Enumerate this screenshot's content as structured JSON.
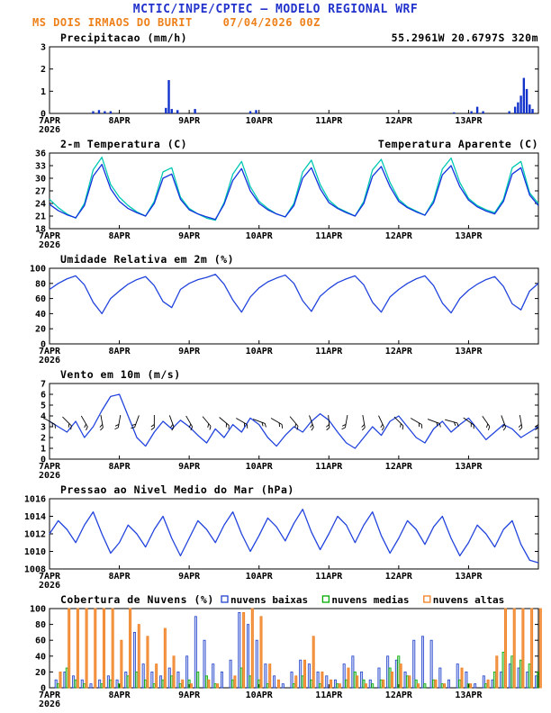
{
  "header": {
    "title": "MCTIC/INPE/CPTEC — MODELO REGIONAL WRF",
    "station": "MS DOIS IRMAOS DO BURIT",
    "run": "07/04/2026 00Z",
    "colors": {
      "title": "#2233cc",
      "subtitle": "#ee8019"
    }
  },
  "x_axis": {
    "labels": [
      "7APR",
      "8APR",
      "9APR",
      "10APR",
      "11APR",
      "12APR",
      "13APR"
    ],
    "year": "2026",
    "hours_max": 168,
    "tick_every_h": 24
  },
  "chart_data": [
    {
      "id": "precip",
      "type": "bar",
      "title": "Precipitacao (mm/h)",
      "right_label": "55.2961W 20.6797S 320m",
      "right_label_color": "#ee8019",
      "ylim": [
        0,
        3
      ],
      "yticks": [
        0,
        1,
        2,
        3
      ],
      "step_hours": 1,
      "series": [
        {
          "name": "precipitation",
          "type": "bar",
          "color": "#1133cc",
          "points": [
            [
              15,
              0.1
            ],
            [
              17,
              0.15
            ],
            [
              19,
              0.1
            ],
            [
              21,
              0.1
            ],
            [
              40,
              0.25
            ],
            [
              41,
              1.5
            ],
            [
              42,
              0.2
            ],
            [
              44,
              0.15
            ],
            [
              50,
              0.2
            ],
            [
              69,
              0.1
            ],
            [
              71,
              0.15
            ],
            [
              139,
              0.05
            ],
            [
              145,
              0.1
            ],
            [
              147,
              0.3
            ],
            [
              149,
              0.1
            ],
            [
              158,
              0.1
            ],
            [
              160,
              0.3
            ],
            [
              161,
              0.5
            ],
            [
              162,
              0.8
            ],
            [
              163,
              1.6
            ],
            [
              164,
              1.1
            ],
            [
              165,
              0.4
            ],
            [
              166,
              0.2
            ]
          ]
        }
      ]
    },
    {
      "id": "temp",
      "type": "line",
      "title": "2-m Temperatura (C)",
      "right_label": "Temperatura Aparente (C)",
      "right_label_color": "#00c8b4",
      "ylim": [
        18,
        36
      ],
      "yticks": [
        18,
        21,
        24,
        27,
        30,
        33,
        36
      ],
      "step_hours": 3,
      "series": [
        {
          "name": "temperatura-aparente",
          "type": "line",
          "color": "#00c8b4",
          "values": [
            25.0,
            23.0,
            21.5,
            20.5,
            24.0,
            32.0,
            35.0,
            28.5,
            25.5,
            23.5,
            22.0,
            21.0,
            24.5,
            31.5,
            32.5,
            25.5,
            22.8,
            21.5,
            20.5,
            20.0,
            24.2,
            31.0,
            34.0,
            28.0,
            24.5,
            22.8,
            21.5,
            20.8,
            24.0,
            31.5,
            34.3,
            28.5,
            24.8,
            23.0,
            22.0,
            21.0,
            24.5,
            32.0,
            34.5,
            29.0,
            25.0,
            23.2,
            22.2,
            21.2,
            24.8,
            32.2,
            34.8,
            29.0,
            25.2,
            23.5,
            22.5,
            21.8,
            25.0,
            32.5,
            34.0,
            26.5,
            24.0
          ]
        },
        {
          "name": "temperatura-2m",
          "type": "line",
          "color": "#1133dd",
          "values": [
            23.8,
            22.3,
            21.3,
            20.6,
            23.5,
            30.5,
            33.3,
            27.5,
            24.5,
            22.8,
            21.8,
            21.0,
            24.0,
            30.0,
            31.0,
            25.0,
            22.5,
            21.5,
            20.8,
            20.2,
            23.8,
            29.5,
            32.3,
            27.0,
            24.0,
            22.5,
            21.5,
            20.8,
            23.5,
            30.0,
            32.5,
            27.5,
            24.2,
            22.8,
            21.8,
            21.0,
            24.0,
            30.5,
            32.8,
            28.0,
            24.5,
            23.0,
            22.0,
            21.2,
            24.2,
            30.8,
            33.0,
            28.0,
            24.8,
            23.2,
            22.2,
            21.5,
            24.5,
            31.0,
            32.5,
            26.0,
            23.5
          ]
        }
      ]
    },
    {
      "id": "rh",
      "type": "line",
      "title": "Umidade Relativa em 2m (%)",
      "ylim": [
        0,
        100
      ],
      "yticks": [
        0,
        20,
        40,
        60,
        80,
        100
      ],
      "step_hours": 3,
      "series": [
        {
          "name": "umidade-relativa",
          "type": "line",
          "color": "#2244dd",
          "values": [
            72,
            80,
            86,
            90,
            78,
            55,
            40,
            60,
            70,
            79,
            85,
            89,
            77,
            56,
            48,
            72,
            80,
            85,
            88,
            92,
            79,
            58,
            42,
            62,
            74,
            82,
            87,
            91,
            80,
            57,
            43,
            63,
            73,
            81,
            86,
            90,
            78,
            55,
            42,
            62,
            72,
            80,
            86,
            90,
            77,
            54,
            41,
            60,
            71,
            79,
            85,
            89,
            76,
            53,
            45,
            70,
            80
          ]
        }
      ]
    },
    {
      "id": "wind",
      "type": "line",
      "title": "Vento em 10m (m/s)",
      "ylim": [
        0,
        7
      ],
      "yticks": [
        0,
        1,
        2,
        3,
        4,
        5,
        6,
        7
      ],
      "step_hours": 3,
      "series": [
        {
          "name": "vento-velocidade",
          "type": "line",
          "color": "#2244dd",
          "values": [
            3.5,
            3.0,
            2.5,
            3.5,
            2.0,
            3.0,
            4.5,
            5.8,
            6.0,
            4.0,
            2.0,
            1.2,
            2.5,
            3.5,
            2.8,
            3.6,
            3.0,
            2.2,
            1.5,
            2.8,
            2.0,
            3.2,
            2.5,
            3.8,
            3.2,
            2.0,
            1.2,
            2.2,
            3.0,
            2.5,
            3.5,
            4.2,
            3.6,
            2.5,
            1.5,
            1.0,
            2.0,
            3.0,
            2.2,
            3.5,
            4.0,
            3.0,
            2.0,
            1.5,
            2.8,
            3.5,
            2.5,
            3.2,
            3.8,
            2.8,
            1.8,
            2.5,
            3.2,
            2.8,
            2.0,
            2.5,
            3.0
          ]
        },
        {
          "name": "vento-direcao-barbs",
          "type": "barbs",
          "color": "#000000",
          "at_value": 3.5,
          "points": [
            [
              0,
              120
            ],
            [
              6,
              135
            ],
            [
              12,
              150
            ],
            [
              18,
              170
            ],
            [
              24,
              190
            ],
            [
              30,
              200
            ],
            [
              36,
              180
            ],
            [
              42,
              160
            ],
            [
              48,
              150
            ],
            [
              54,
              140
            ],
            [
              60,
              130
            ],
            [
              66,
              120
            ],
            [
              72,
              110
            ],
            [
              78,
              120
            ],
            [
              84,
              140
            ],
            [
              90,
              160
            ],
            [
              96,
              175
            ],
            [
              102,
              190
            ],
            [
              108,
              170
            ],
            [
              114,
              155
            ],
            [
              120,
              135
            ],
            [
              126,
              120
            ],
            [
              132,
              110
            ],
            [
              138,
              105
            ],
            [
              144,
              125
            ],
            [
              150,
              145
            ],
            [
              156,
              160
            ],
            [
              162,
              170
            ],
            [
              168,
              180
            ]
          ]
        }
      ]
    },
    {
      "id": "pres",
      "type": "line",
      "title": "Pressao ao Nivel Medio do Mar (hPa)",
      "ylim": [
        1008,
        1016
      ],
      "yticks": [
        1008,
        1010,
        1012,
        1014,
        1016
      ],
      "step_hours": 3,
      "series": [
        {
          "name": "pressao-nivel-mar",
          "type": "line",
          "color": "#2244dd",
          "values": [
            1012.0,
            1013.5,
            1012.5,
            1011.0,
            1013.0,
            1014.5,
            1012.0,
            1009.8,
            1011.0,
            1013.0,
            1012.0,
            1010.5,
            1012.5,
            1014.0,
            1011.5,
            1009.5,
            1011.5,
            1013.5,
            1012.5,
            1011.0,
            1013.0,
            1014.5,
            1012.0,
            1010.0,
            1011.8,
            1013.8,
            1012.8,
            1011.2,
            1013.2,
            1014.8,
            1012.2,
            1010.2,
            1012.0,
            1014.0,
            1013.0,
            1011.0,
            1013.0,
            1014.5,
            1011.8,
            1009.8,
            1011.5,
            1013.5,
            1012.5,
            1010.8,
            1012.8,
            1014.0,
            1011.5,
            1009.5,
            1011.0,
            1013.0,
            1012.0,
            1010.5,
            1012.5,
            1013.5,
            1010.8,
            1009.0,
            1008.7
          ]
        }
      ]
    },
    {
      "id": "clouds",
      "type": "bar",
      "title": "Cobertura de Nuvens (%)",
      "ylim": [
        0,
        100
      ],
      "yticks": [
        0,
        20,
        40,
        60,
        80,
        100
      ],
      "step_hours": 3,
      "legend": [
        {
          "label": "nuvens baixas",
          "color": "#2244cc"
        },
        {
          "label": "nuvens medias",
          "color": "#00aa00"
        },
        {
          "label": "nuvens altas",
          "color": "#f08020"
        }
      ],
      "series": [
        {
          "name": "nuvens-baixas",
          "type": "cloudbar",
          "color": "#2244cc",
          "dx": -2.6,
          "fill_opacity": 0.25,
          "values": [
            0,
            10,
            20,
            15,
            10,
            5,
            10,
            15,
            10,
            20,
            70,
            30,
            20,
            15,
            25,
            20,
            40,
            90,
            60,
            30,
            20,
            35,
            95,
            80,
            60,
            30,
            15,
            5,
            20,
            35,
            30,
            20,
            15,
            10,
            30,
            40,
            20,
            10,
            25,
            40,
            35,
            20,
            60,
            65,
            60,
            25,
            10,
            30,
            20,
            5,
            15,
            10,
            20,
            30,
            25,
            20,
            15
          ]
        },
        {
          "name": "nuvens-medias",
          "type": "cloudbar",
          "color": "#00aa00",
          "dx": -0.2,
          "fill_opacity": 0.3,
          "values": [
            0,
            5,
            25,
            10,
            5,
            0,
            5,
            10,
            5,
            15,
            20,
            10,
            5,
            10,
            15,
            5,
            10,
            20,
            15,
            5,
            0,
            10,
            25,
            15,
            10,
            5,
            0,
            0,
            5,
            15,
            10,
            5,
            0,
            5,
            10,
            20,
            10,
            5,
            10,
            25,
            40,
            15,
            10,
            5,
            10,
            5,
            0,
            10,
            5,
            0,
            5,
            20,
            45,
            40,
            35,
            30,
            20
          ]
        },
        {
          "name": "nuvens-altas",
          "type": "cloudbar",
          "color": "#f08020",
          "dx": 2.2,
          "fill_opacity": 0.8,
          "values": [
            0,
            20,
            100,
            100,
            100,
            100,
            100,
            100,
            60,
            100,
            80,
            65,
            30,
            75,
            40,
            10,
            5,
            0,
            10,
            5,
            0,
            15,
            95,
            100,
            90,
            30,
            10,
            0,
            15,
            35,
            65,
            20,
            10,
            5,
            25,
            15,
            5,
            0,
            10,
            20,
            30,
            15,
            5,
            0,
            10,
            5,
            0,
            25,
            5,
            0,
            10,
            40,
            100,
            100,
            100,
            100,
            100
          ]
        }
      ]
    }
  ]
}
